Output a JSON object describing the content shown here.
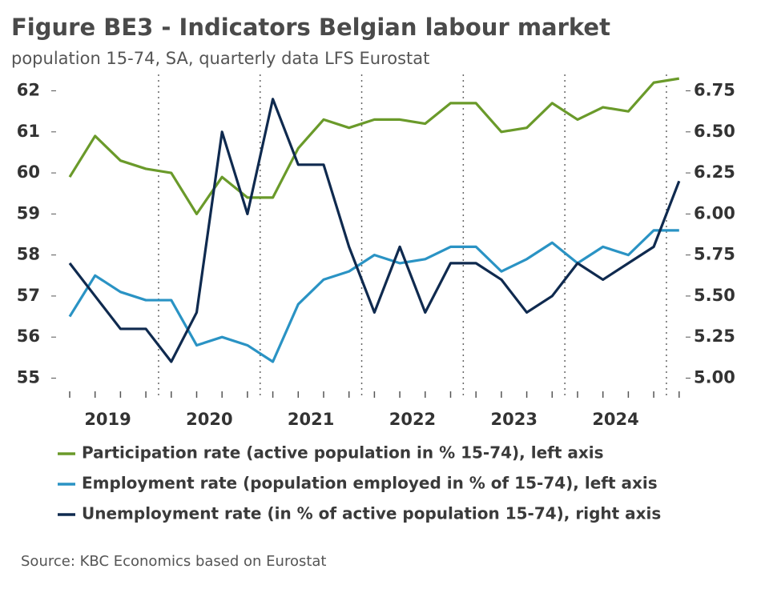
{
  "chart_data": {
    "type": "line",
    "title": "Figure BE3 - Indicators Belgian labour market",
    "subtitle": "population 15-74, SA, quarterly data LFS Eurostat",
    "source": "Source: KBC Economics based on Eurostat",
    "year_labels": [
      "2019",
      "2020",
      "2021",
      "2022",
      "2023",
      "2024"
    ],
    "series": [
      {
        "name": "Participation rate (active population in % 15-74), left axis",
        "color": "#6a9a2a",
        "axis": "y",
        "values": [
          59.9,
          60.9,
          60.3,
          60.1,
          60.0,
          59.0,
          59.9,
          59.4,
          59.4,
          60.6,
          61.3,
          61.1,
          61.3,
          61.3,
          61.2,
          61.7,
          61.7,
          61.0,
          61.1,
          61.7,
          61.3,
          61.6,
          61.5,
          62.2,
          62.3
        ]
      },
      {
        "name": "Employment rate (population employed in % of 15-74), left axis",
        "color": "#2a93c4",
        "axis": "y",
        "values": [
          56.5,
          57.5,
          57.1,
          56.9,
          56.9,
          55.8,
          56.0,
          55.8,
          55.4,
          56.8,
          57.4,
          57.6,
          58.0,
          57.8,
          57.9,
          58.2,
          58.2,
          57.6,
          57.9,
          58.3,
          57.8,
          58.2,
          58.0,
          58.6,
          58.6
        ]
      },
      {
        "name": "Unemployment rate (in % of active population 15-74), right axis",
        "color": "#0f2a4f",
        "axis": "y2",
        "values": [
          5.7,
          5.5,
          5.3,
          5.3,
          5.1,
          5.4,
          6.5,
          6.0,
          6.7,
          6.3,
          6.3,
          5.8,
          5.4,
          5.8,
          5.4,
          5.7,
          5.7,
          5.6,
          5.4,
          5.5,
          5.7,
          5.6,
          5.7,
          5.8,
          6.2
        ]
      }
    ],
    "ylim": [
      54.6,
      62.4
    ],
    "yticks": [
      55,
      56,
      57,
      58,
      59,
      60,
      61,
      62
    ],
    "y2lim": [
      4.9,
      6.85
    ],
    "y2ticks": [
      {
        "value": 5,
        "label": "5.00"
      },
      {
        "value": 5.25,
        "label": "5.25"
      },
      {
        "value": 5.5,
        "label": "5.50"
      },
      {
        "value": 5.75,
        "label": "5.75"
      },
      {
        "value": 6,
        "label": "6.00"
      },
      {
        "value": 6.25,
        "label": "6.25"
      },
      {
        "value": 6.5,
        "label": "6.50"
      },
      {
        "value": 6.75,
        "label": "6.75"
      }
    ]
  }
}
